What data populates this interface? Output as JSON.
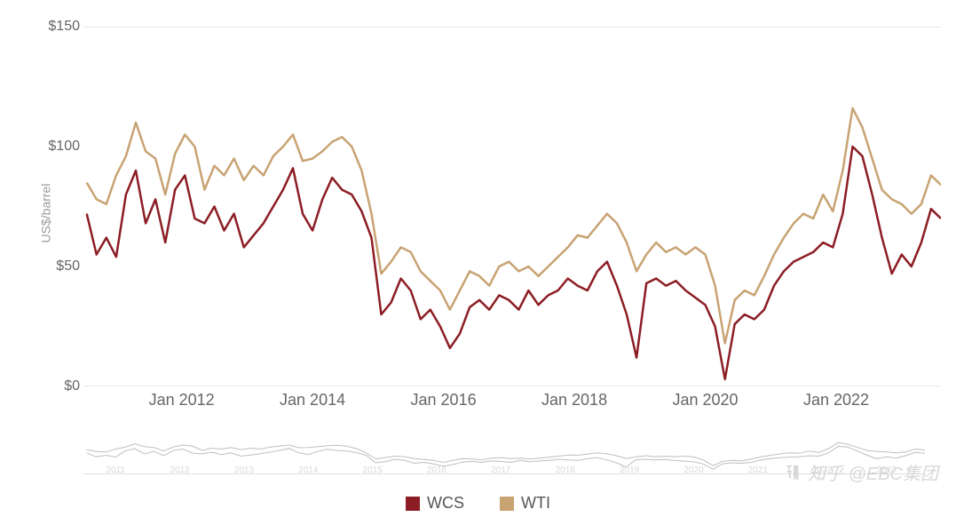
{
  "chart": {
    "type": "line",
    "ylabel": "US$/barrel",
    "ylim": [
      0,
      150
    ],
    "yticks": [
      {
        "value": 0,
        "label": "$0"
      },
      {
        "value": 50,
        "label": "$50"
      },
      {
        "value": 100,
        "label": "$100"
      },
      {
        "value": 150,
        "label": "$150"
      }
    ],
    "xlim": [
      2010.5,
      2023.6
    ],
    "xticks": [
      {
        "value": 2012,
        "label": "Jan 2012"
      },
      {
        "value": 2014,
        "label": "Jan 2014"
      },
      {
        "value": 2016,
        "label": "Jan 2016"
      },
      {
        "value": 2018,
        "label": "Jan 2018"
      },
      {
        "value": 2020,
        "label": "Jan 2020"
      },
      {
        "value": 2022,
        "label": "Jan 2022"
      }
    ],
    "xtick_fontsize": 18,
    "ytick_fontsize": 16,
    "ylabel_fontsize": 14,
    "background_color": "#ffffff",
    "axis_color": "#d0d0d0",
    "tick_text_color": "#666666",
    "line_width": 2.5,
    "series": [
      {
        "name": "WCS",
        "color": "#8c1d24",
        "points": [
          [
            2010.55,
            72
          ],
          [
            2010.7,
            55
          ],
          [
            2010.85,
            62
          ],
          [
            2011.0,
            54
          ],
          [
            2011.15,
            80
          ],
          [
            2011.3,
            90
          ],
          [
            2011.45,
            68
          ],
          [
            2011.6,
            78
          ],
          [
            2011.75,
            60
          ],
          [
            2011.9,
            82
          ],
          [
            2012.05,
            88
          ],
          [
            2012.2,
            70
          ],
          [
            2012.35,
            68
          ],
          [
            2012.5,
            75
          ],
          [
            2012.65,
            65
          ],
          [
            2012.8,
            72
          ],
          [
            2012.95,
            58
          ],
          [
            2013.1,
            63
          ],
          [
            2013.25,
            68
          ],
          [
            2013.4,
            75
          ],
          [
            2013.55,
            82
          ],
          [
            2013.7,
            91
          ],
          [
            2013.85,
            72
          ],
          [
            2014.0,
            65
          ],
          [
            2014.15,
            78
          ],
          [
            2014.3,
            87
          ],
          [
            2014.45,
            82
          ],
          [
            2014.6,
            80
          ],
          [
            2014.75,
            73
          ],
          [
            2014.9,
            62
          ],
          [
            2015.05,
            30
          ],
          [
            2015.2,
            35
          ],
          [
            2015.35,
            45
          ],
          [
            2015.5,
            40
          ],
          [
            2015.65,
            28
          ],
          [
            2015.8,
            32
          ],
          [
            2015.95,
            25
          ],
          [
            2016.1,
            16
          ],
          [
            2016.25,
            22
          ],
          [
            2016.4,
            33
          ],
          [
            2016.55,
            36
          ],
          [
            2016.7,
            32
          ],
          [
            2016.85,
            38
          ],
          [
            2017.0,
            36
          ],
          [
            2017.15,
            32
          ],
          [
            2017.3,
            40
          ],
          [
            2017.45,
            34
          ],
          [
            2017.6,
            38
          ],
          [
            2017.75,
            40
          ],
          [
            2017.9,
            45
          ],
          [
            2018.05,
            42
          ],
          [
            2018.2,
            40
          ],
          [
            2018.35,
            48
          ],
          [
            2018.5,
            52
          ],
          [
            2018.65,
            42
          ],
          [
            2018.8,
            30
          ],
          [
            2018.95,
            12
          ],
          [
            2019.1,
            43
          ],
          [
            2019.25,
            45
          ],
          [
            2019.4,
            42
          ],
          [
            2019.55,
            44
          ],
          [
            2019.7,
            40
          ],
          [
            2019.85,
            37
          ],
          [
            2020.0,
            34
          ],
          [
            2020.15,
            25
          ],
          [
            2020.3,
            3
          ],
          [
            2020.45,
            26
          ],
          [
            2020.6,
            30
          ],
          [
            2020.75,
            28
          ],
          [
            2020.9,
            32
          ],
          [
            2021.05,
            42
          ],
          [
            2021.2,
            48
          ],
          [
            2021.35,
            52
          ],
          [
            2021.5,
            54
          ],
          [
            2021.65,
            56
          ],
          [
            2021.8,
            60
          ],
          [
            2021.95,
            58
          ],
          [
            2022.1,
            72
          ],
          [
            2022.25,
            100
          ],
          [
            2022.4,
            96
          ],
          [
            2022.55,
            80
          ],
          [
            2022.7,
            62
          ],
          [
            2022.85,
            47
          ],
          [
            2023.0,
            55
          ],
          [
            2023.15,
            50
          ],
          [
            2023.3,
            60
          ],
          [
            2023.45,
            74
          ],
          [
            2023.6,
            70
          ]
        ]
      },
      {
        "name": "WTI",
        "color": "#c8a373",
        "points": [
          [
            2010.55,
            85
          ],
          [
            2010.7,
            78
          ],
          [
            2010.85,
            76
          ],
          [
            2011.0,
            88
          ],
          [
            2011.15,
            96
          ],
          [
            2011.3,
            110
          ],
          [
            2011.45,
            98
          ],
          [
            2011.6,
            95
          ],
          [
            2011.75,
            80
          ],
          [
            2011.9,
            97
          ],
          [
            2012.05,
            105
          ],
          [
            2012.2,
            100
          ],
          [
            2012.35,
            82
          ],
          [
            2012.5,
            92
          ],
          [
            2012.65,
            88
          ],
          [
            2012.8,
            95
          ],
          [
            2012.95,
            86
          ],
          [
            2013.1,
            92
          ],
          [
            2013.25,
            88
          ],
          [
            2013.4,
            96
          ],
          [
            2013.55,
            100
          ],
          [
            2013.7,
            105
          ],
          [
            2013.85,
            94
          ],
          [
            2014.0,
            95
          ],
          [
            2014.15,
            98
          ],
          [
            2014.3,
            102
          ],
          [
            2014.45,
            104
          ],
          [
            2014.6,
            100
          ],
          [
            2014.75,
            90
          ],
          [
            2014.9,
            72
          ],
          [
            2015.05,
            47
          ],
          [
            2015.2,
            52
          ],
          [
            2015.35,
            58
          ],
          [
            2015.5,
            56
          ],
          [
            2015.65,
            48
          ],
          [
            2015.8,
            44
          ],
          [
            2015.95,
            40
          ],
          [
            2016.1,
            32
          ],
          [
            2016.25,
            40
          ],
          [
            2016.4,
            48
          ],
          [
            2016.55,
            46
          ],
          [
            2016.7,
            42
          ],
          [
            2016.85,
            50
          ],
          [
            2017.0,
            52
          ],
          [
            2017.15,
            48
          ],
          [
            2017.3,
            50
          ],
          [
            2017.45,
            46
          ],
          [
            2017.6,
            50
          ],
          [
            2017.75,
            54
          ],
          [
            2017.9,
            58
          ],
          [
            2018.05,
            63
          ],
          [
            2018.2,
            62
          ],
          [
            2018.35,
            67
          ],
          [
            2018.5,
            72
          ],
          [
            2018.65,
            68
          ],
          [
            2018.8,
            60
          ],
          [
            2018.95,
            48
          ],
          [
            2019.1,
            55
          ],
          [
            2019.25,
            60
          ],
          [
            2019.4,
            56
          ],
          [
            2019.55,
            58
          ],
          [
            2019.7,
            55
          ],
          [
            2019.85,
            58
          ],
          [
            2020.0,
            55
          ],
          [
            2020.15,
            42
          ],
          [
            2020.3,
            18
          ],
          [
            2020.45,
            36
          ],
          [
            2020.6,
            40
          ],
          [
            2020.75,
            38
          ],
          [
            2020.9,
            46
          ],
          [
            2021.05,
            55
          ],
          [
            2021.2,
            62
          ],
          [
            2021.35,
            68
          ],
          [
            2021.5,
            72
          ],
          [
            2021.65,
            70
          ],
          [
            2021.8,
            80
          ],
          [
            2021.95,
            73
          ],
          [
            2022.1,
            90
          ],
          [
            2022.25,
            116
          ],
          [
            2022.4,
            108
          ],
          [
            2022.55,
            95
          ],
          [
            2022.7,
            82
          ],
          [
            2022.85,
            78
          ],
          [
            2023.0,
            76
          ],
          [
            2023.15,
            72
          ],
          [
            2023.3,
            76
          ],
          [
            2023.45,
            88
          ],
          [
            2023.6,
            84
          ]
        ]
      }
    ]
  },
  "legend": {
    "items": [
      {
        "label": "WCS",
        "color": "#8c1d24"
      },
      {
        "label": "WTI",
        "color": "#c8a373"
      }
    ]
  },
  "mini_chart": {
    "line_color": "#bfbfbf",
    "line_width": 1,
    "year_labels": [
      "2011",
      "2012",
      "2013",
      "2014",
      "2015",
      "2016",
      "2017",
      "2018",
      "2019",
      "2020",
      "2021",
      "2022",
      "2023"
    ],
    "label_color": "#d8d8d8",
    "label_fontsize": 10
  },
  "watermark": {
    "text": "知乎 @EBC集团"
  }
}
